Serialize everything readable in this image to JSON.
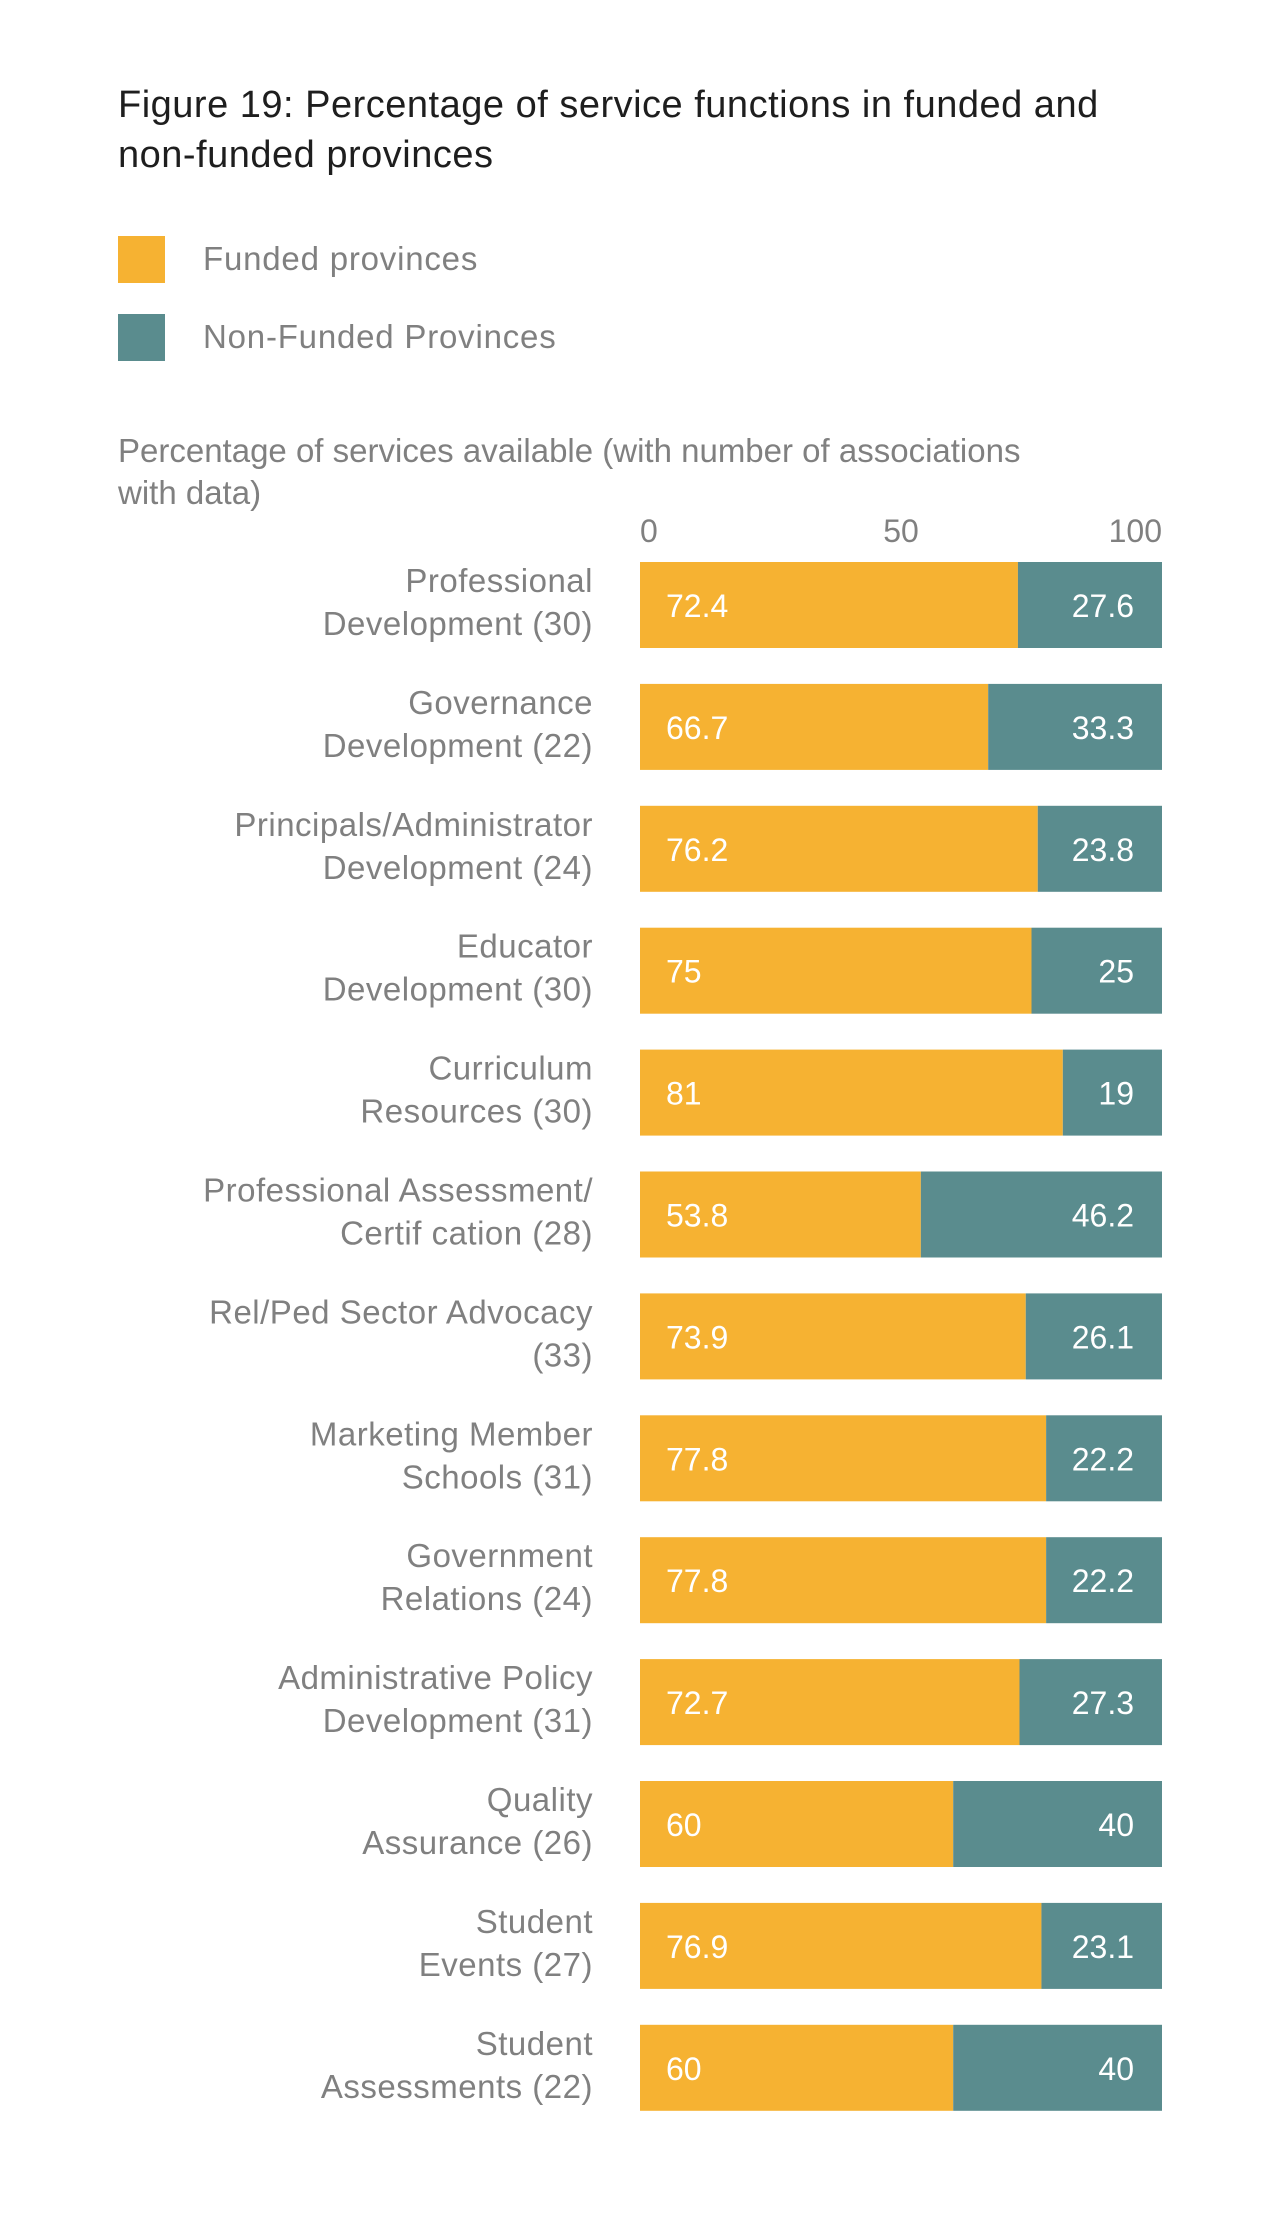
{
  "chart_data": {
    "type": "bar",
    "orientation": "horizontal",
    "stacked": true,
    "title": "Figure 19: Percentage of service functions in funded and non-funded provinces",
    "xlabel": "Percentage of services available (with number of associations with data)",
    "xlim": [
      0,
      100
    ],
    "xticks": [
      "0",
      "50",
      "100"
    ],
    "grid": false,
    "legend_placement": "top-left",
    "categories": [
      "Professional Development (30)",
      "Governance Development (22)",
      "Principals/Administrator Development (24)",
      "Educator Development (30)",
      "Curriculum Resources (30)",
      "Professional Assessment/ Certif cation (28)",
      "Rel/Ped Sector Advocacy (33)",
      "Marketing Member Schools (31)",
      "Government Relations (24)",
      "Administrative Policy Development (31)",
      "Quality Assurance (26)",
      "Student Events (27)",
      "Student Assessments (22)"
    ],
    "category_lines": [
      [
        "Professional",
        "Development (30)"
      ],
      [
        "Governance",
        "Development (22)"
      ],
      [
        "Principals/Administrator",
        "Development (24)"
      ],
      [
        "Educator",
        "Development (30)"
      ],
      [
        "Curriculum",
        "Resources (30)"
      ],
      [
        "Professional Assessment/",
        "Certif cation (28)"
      ],
      [
        "Rel/Ped Sector Advocacy",
        "(33)"
      ],
      [
        "Marketing Member",
        "Schools (31)"
      ],
      [
        "Government",
        "Relations (24)"
      ],
      [
        "Administrative Policy",
        "Development (31)"
      ],
      [
        "Quality",
        "Assurance (26)"
      ],
      [
        "Student",
        "Events (27)"
      ],
      [
        "Student",
        "Assessments (22)"
      ]
    ],
    "series": [
      {
        "name": "Funded provinces",
        "color": "#F6B232",
        "values": [
          72.4,
          66.7,
          76.2,
          75,
          81,
          53.8,
          73.9,
          77.8,
          77.8,
          72.7,
          60,
          76.9,
          60
        ]
      },
      {
        "name": "Non-Funded Provinces",
        "color": "#5A8C8E",
        "values": [
          27.6,
          33.3,
          23.8,
          25,
          19,
          46.2,
          26.1,
          22.2,
          22.2,
          27.3,
          40,
          23.1,
          40
        ]
      }
    ]
  }
}
